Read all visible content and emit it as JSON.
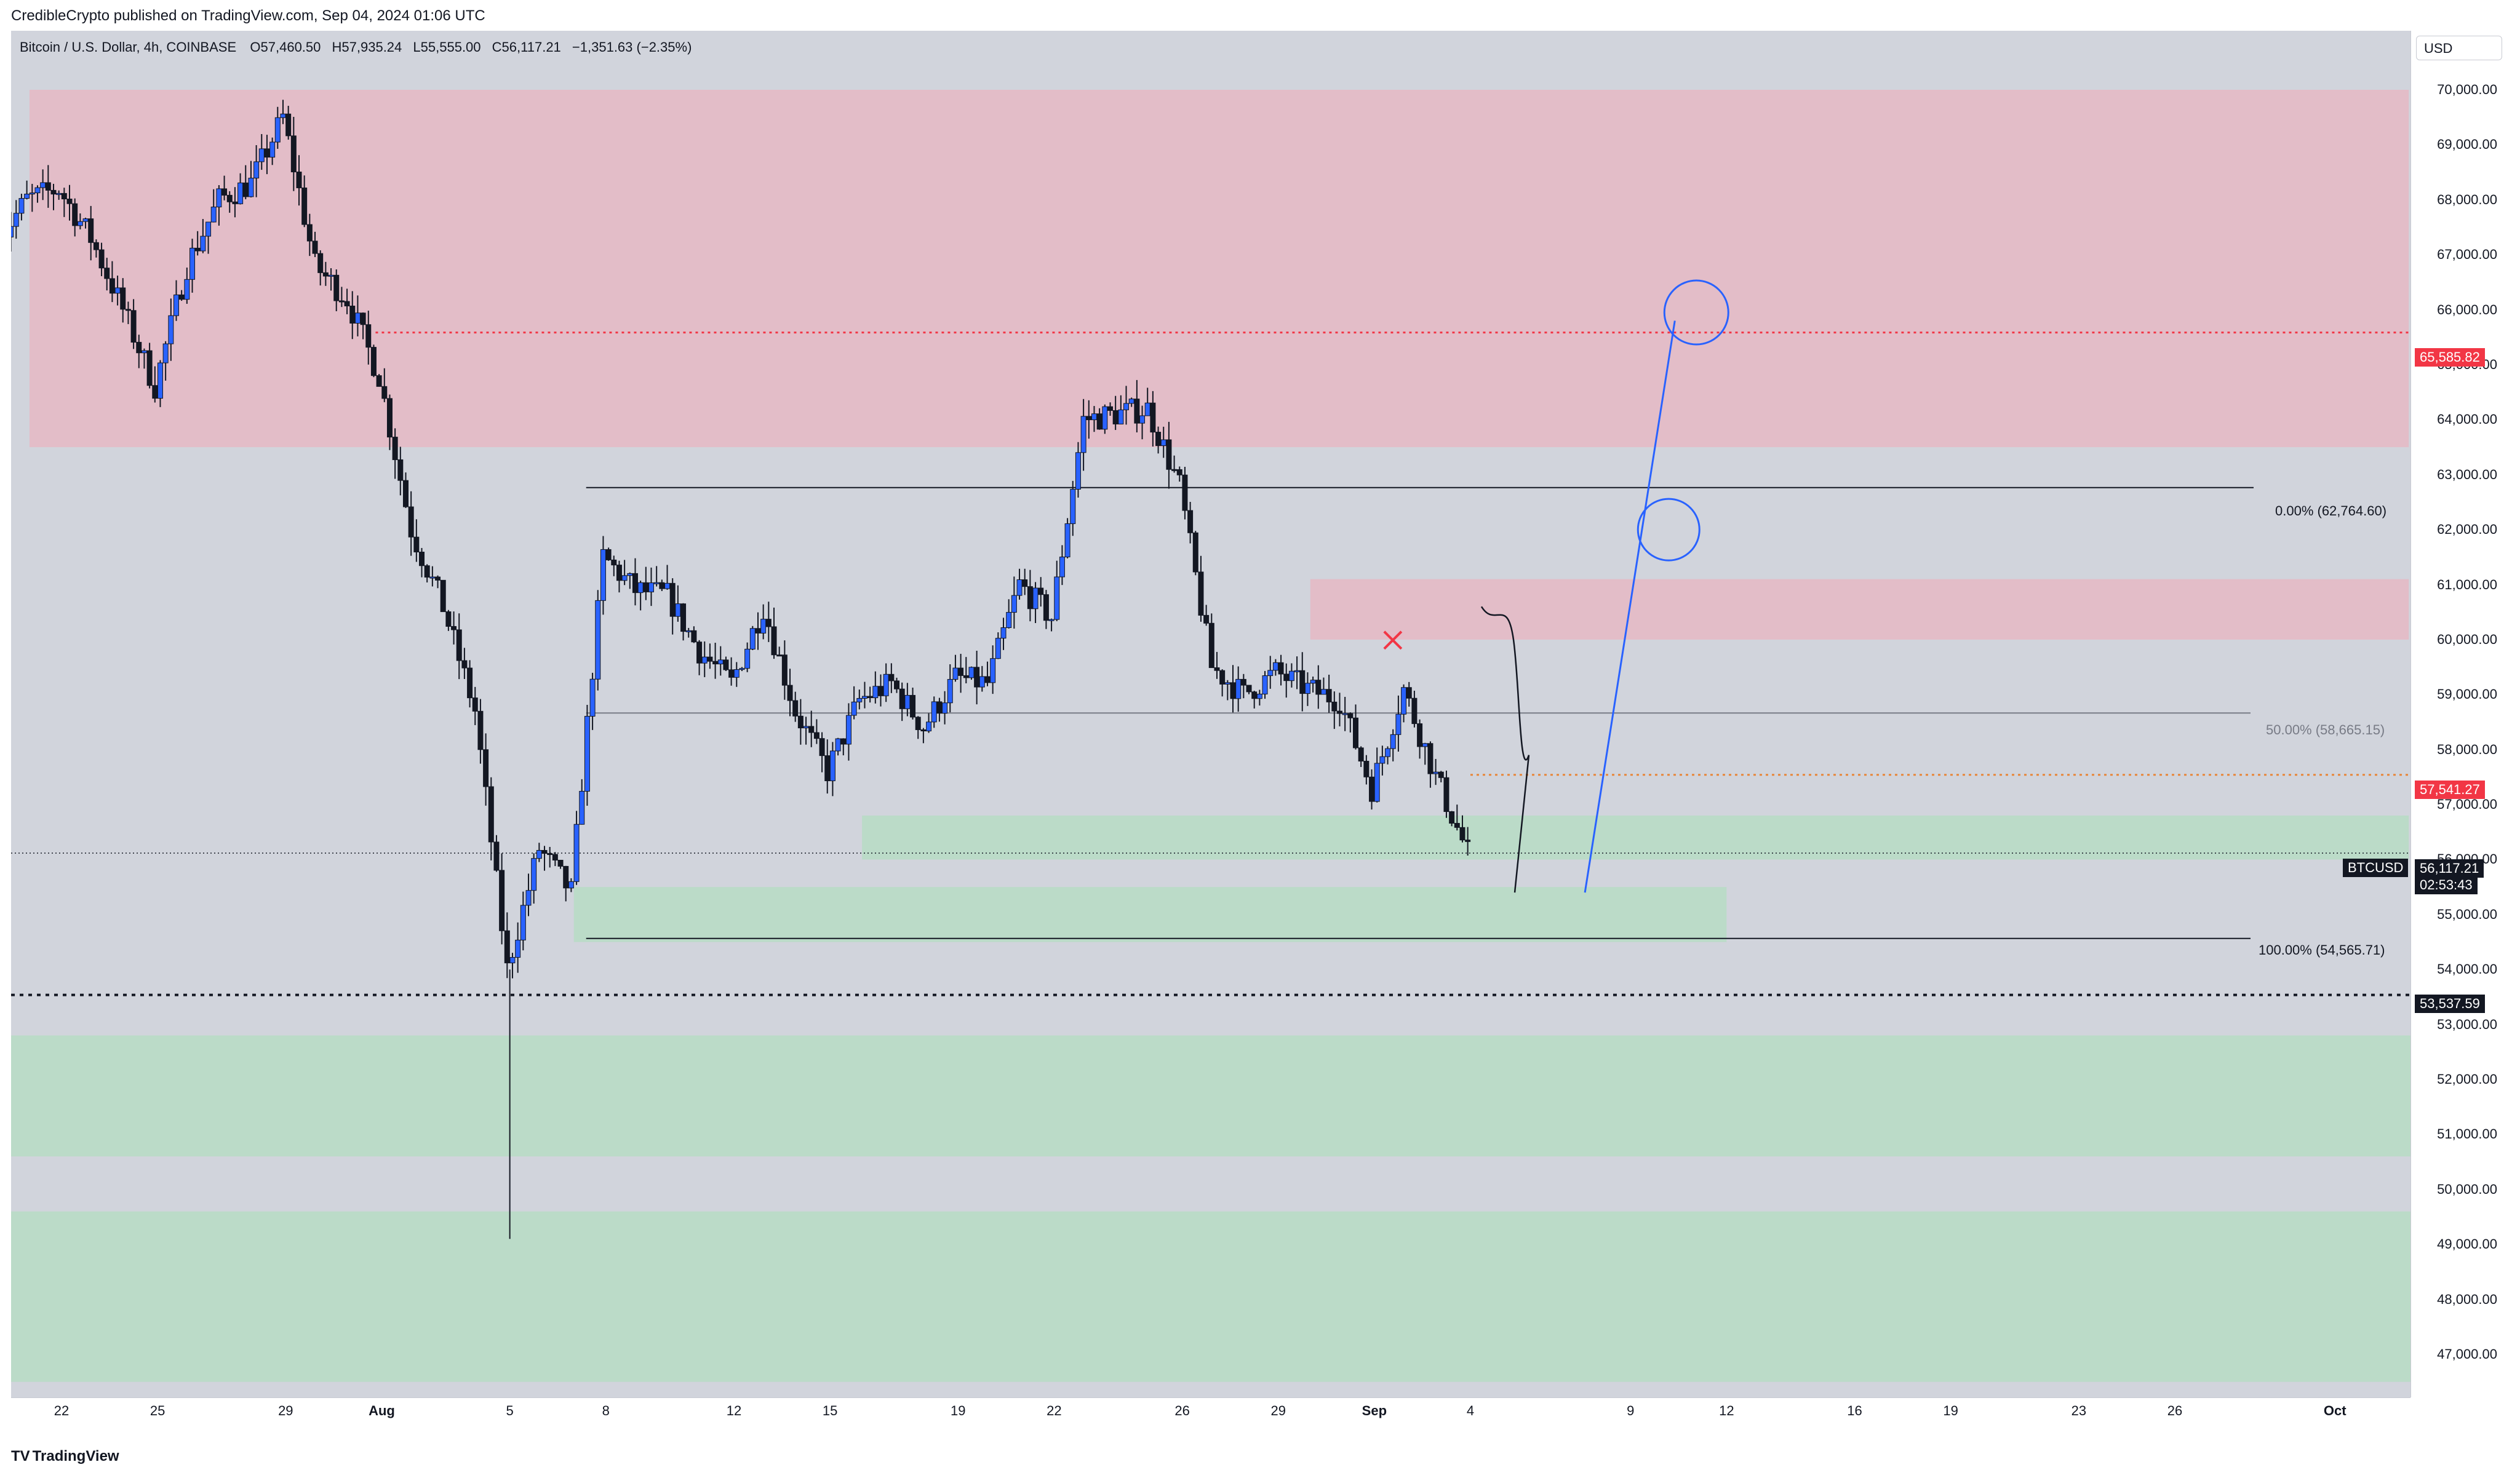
{
  "header": {
    "published": "CredibleCrypto published on TradingView.com, Sep 04, 2024 01:06 UTC"
  },
  "legend": {
    "symbol": "Bitcoin / U.S. Dollar, 4h, COINBASE",
    "o_label": "O",
    "o_value": "57,460.50",
    "h_label": "H",
    "h_value": "57,935.24",
    "l_label": "L",
    "l_value": "55,555.00",
    "c_label": "C",
    "c_value": "56,117.21",
    "change": "−1,351.63 (−2.35%)"
  },
  "price_scale": {
    "currency": "USD",
    "ticks": [
      "47,000.00",
      "48,000.00",
      "49,000.00",
      "50,000.00",
      "51,000.00",
      "52,000.00",
      "53,000.00",
      "54,000.00",
      "55,000.00",
      "56,000.00",
      "57,000.00",
      "58,000.00",
      "59,000.00",
      "60,000.00",
      "61,000.00",
      "62,000.00",
      "63,000.00",
      "64,000.00",
      "65,000.00",
      "66,000.00",
      "67,000.00",
      "68,000.00",
      "69,000.00",
      "70,000.00"
    ],
    "tag_resistance": "65,585.82",
    "tag_level": "57,541.27",
    "tag_support": "53,537.59",
    "tag_price": "56,117.21",
    "countdown": "02:53:43"
  },
  "symbol_label": "BTCUSD",
  "fib": {
    "top": "0.00% (62,764.60)",
    "mid": "50.00% (58,665.15)",
    "bottom": "100.00% (54,565.71)"
  },
  "time_scale": {
    "labels": [
      "22",
      "25",
      "29",
      "Aug",
      "5",
      "8",
      "12",
      "15",
      "19",
      "22",
      "26",
      "29",
      "Sep",
      "4",
      "9",
      "12",
      "16",
      "19",
      "23",
      "26",
      "Oct"
    ]
  },
  "footer": {
    "brand": "TradingView"
  },
  "colors": {
    "up": "#2962ff",
    "down": "#131722",
    "resistance_zone": "#e6b8c4",
    "support_zone": "#b7dcc4",
    "red_line": "#f23645",
    "projection": "#2962ff"
  },
  "chart_data": {
    "type": "candlestick",
    "symbol": "Bitcoin / U.S. Dollar",
    "interval": "4h",
    "exchange": "COINBASE",
    "ylim": [
      46500,
      71200
    ],
    "x_ticks": [
      "Jul 22",
      "Jul 25",
      "Jul 29",
      "Aug 1",
      "Aug 5",
      "Aug 8",
      "Aug 12",
      "Aug 15",
      "Aug 19",
      "Aug 22",
      "Aug 26",
      "Aug 29",
      "Sep 1",
      "Sep 4",
      "Sep 9",
      "Sep 12",
      "Sep 16",
      "Sep 19",
      "Sep 23",
      "Sep 26",
      "Oct 1"
    ],
    "price_path": [
      [
        "Jul 20",
        67200
      ],
      [
        "Jul 21",
        68000
      ],
      [
        "Jul 22",
        68200
      ],
      [
        "Jul 23",
        67300
      ],
      [
        "Jul 24",
        66000
      ],
      [
        "Jul 25",
        64600
      ],
      [
        "Jul 26",
        66800
      ],
      [
        "Jul 27",
        68000
      ],
      [
        "Jul 28",
        68300
      ],
      [
        "Jul 29",
        69500
      ],
      [
        "Jul 30",
        66800
      ],
      [
        "Jul 31",
        66200
      ],
      [
        "Aug 1",
        64800
      ],
      [
        "Aug 2",
        62000
      ],
      [
        "Aug 3",
        60600
      ],
      [
        "Aug 4",
        58700
      ],
      [
        "Aug 5",
        54000
      ],
      [
        "Aug 6",
        56200
      ],
      [
        "Aug 7",
        55400
      ],
      [
        "Aug 8",
        61500
      ],
      [
        "Aug 9",
        60900
      ],
      [
        "Aug 10",
        60800
      ],
      [
        "Aug 11",
        59800
      ],
      [
        "Aug 12",
        59200
      ],
      [
        "Aug 13",
        60600
      ],
      [
        "Aug 14",
        58700
      ],
      [
        "Aug 15",
        57600
      ],
      [
        "Aug 16",
        58900
      ],
      [
        "Aug 17",
        59200
      ],
      [
        "Aug 18",
        58400
      ],
      [
        "Aug 19",
        59300
      ],
      [
        "Aug 20",
        59200
      ],
      [
        "Aug 21",
        61000
      ],
      [
        "Aug 22",
        60400
      ],
      [
        "Aug 23",
        64000
      ],
      [
        "Aug 24",
        64100
      ],
      [
        "Aug 25",
        64200
      ],
      [
        "Aug 26",
        62800
      ],
      [
        "Aug 27",
        59500
      ],
      [
        "Aug 28",
        59000
      ],
      [
        "Aug 29",
        59400
      ],
      [
        "Aug 30",
        59100
      ],
      [
        "Aug 31",
        58900
      ],
      [
        "Sep 1",
        57300
      ],
      [
        "Sep 2",
        59100
      ],
      [
        "Sep 3",
        57500
      ],
      [
        "Sep 4",
        56117
      ]
    ],
    "zones": [
      {
        "type": "resistance",
        "from": 63500,
        "to": 70000
      },
      {
        "type": "resistance",
        "from": 60000,
        "to": 61100
      },
      {
        "type": "support",
        "from": 56000,
        "to": 56800
      },
      {
        "type": "support",
        "from": 54500,
        "to": 55500
      },
      {
        "type": "support",
        "from": 50600,
        "to": 52800
      },
      {
        "type": "support",
        "from": 46500,
        "to": 49600
      }
    ],
    "levels": [
      65585.82,
      57541.27,
      53537.59
    ],
    "fibonacci": {
      "0%": 62764.6,
      "50%": 58665.15,
      "100%": 54565.71
    },
    "current_price": 56117.21
  }
}
